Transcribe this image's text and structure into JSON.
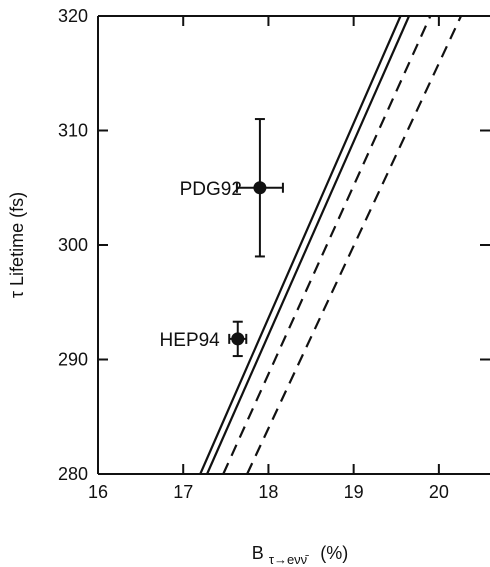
{
  "chart_data": {
    "type": "scatter",
    "title": "",
    "xlabel_main": "B",
    "xlabel_subscript": "τ→eνν̄",
    "xlabel_unit": "(%)",
    "ylabel": "τ Lifetime (fs)",
    "xlim": [
      16,
      20.6
    ],
    "ylim": [
      280,
      320
    ],
    "x_ticks": [
      16,
      17,
      18,
      19,
      20
    ],
    "y_ticks": [
      280,
      290,
      300,
      310,
      320
    ],
    "grid": false,
    "points": [
      {
        "label": "PDG92",
        "x": 17.9,
        "y": 305,
        "x_err": 0.27,
        "y_err": 6
      },
      {
        "label": "HEP94",
        "x": 17.64,
        "y": 291.8,
        "x_err": 0.1,
        "y_err": 1.5
      }
    ],
    "bands": [
      {
        "style": "solid",
        "lines": [
          [
            [
              17.2,
              280
            ],
            [
              19.55,
              320
            ]
          ],
          [
            [
              17.28,
              280
            ],
            [
              19.65,
              320
            ]
          ]
        ]
      },
      {
        "style": "dashed",
        "lines": [
          [
            [
              17.47,
              280
            ],
            [
              19.9,
              320
            ]
          ],
          [
            [
              17.75,
              280
            ],
            [
              20.26,
              320
            ]
          ]
        ]
      }
    ],
    "colors": {
      "ink": "#111111",
      "background": "#ffffff"
    }
  }
}
